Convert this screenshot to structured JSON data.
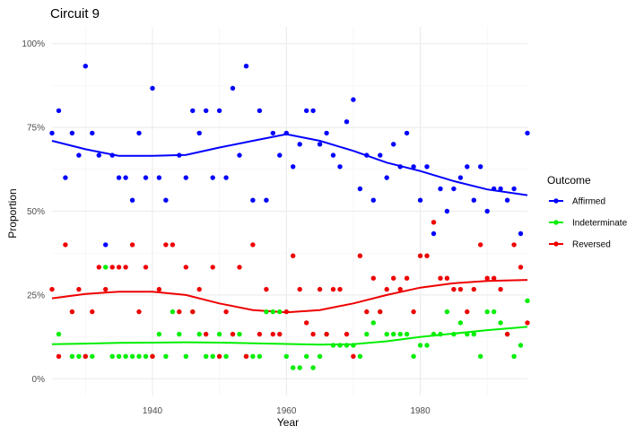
{
  "chart_data": {
    "type": "scatter",
    "title": "Circuit 9",
    "xlabel": "Year",
    "ylabel": "Proportion",
    "xlim": [
      1925,
      1996
    ],
    "ylim": [
      0,
      1
    ],
    "x_ticks": [
      1940,
      1960,
      1980
    ],
    "x_tick_labels": [
      "1940",
      "1960",
      "1980"
    ],
    "y_ticks": [
      0,
      0.25,
      0.5,
      0.75,
      1.0
    ],
    "y_tick_labels": [
      "0%",
      "25%",
      "50%",
      "75%",
      "100%"
    ],
    "grid": true,
    "legend": {
      "title": "Outcome",
      "position": "right"
    },
    "series": [
      {
        "name": "Affirmed",
        "color": "#0000ff",
        "x": [
          1925,
          1926,
          1927,
          1928,
          1929,
          1930,
          1931,
          1932,
          1933,
          1934,
          1935,
          1936,
          1937,
          1938,
          1939,
          1940,
          1941,
          1942,
          1944,
          1945,
          1946,
          1947,
          1948,
          1949,
          1950,
          1951,
          1952,
          1953,
          1954,
          1955,
          1956,
          1957,
          1958,
          1959,
          1960,
          1961,
          1962,
          1963,
          1964,
          1965,
          1966,
          1967,
          1968,
          1969,
          1970,
          1971,
          1972,
          1973,
          1974,
          1975,
          1976,
          1977,
          1978,
          1979,
          1980,
          1981,
          1982,
          1983,
          1984,
          1985,
          1986,
          1987,
          1988,
          1989,
          1990,
          1991,
          1992,
          1993,
          1994,
          1995,
          1996
        ],
        "y": [
          0.733,
          0.8,
          0.6,
          0.733,
          0.667,
          0.933,
          0.733,
          0.667,
          0.4,
          0.667,
          0.6,
          0.6,
          0.533,
          0.733,
          0.6,
          0.867,
          0.6,
          0.533,
          0.667,
          0.6,
          0.8,
          0.733,
          0.8,
          0.6,
          0.8,
          0.6,
          0.867,
          0.667,
          0.933,
          0.533,
          0.8,
          0.533,
          0.733,
          0.667,
          0.733,
          0.633,
          0.7,
          0.8,
          0.8,
          0.7,
          0.733,
          0.667,
          0.633,
          0.767,
          0.833,
          0.567,
          0.667,
          0.533,
          0.667,
          0.6,
          0.7,
          0.633,
          0.733,
          0.633,
          0.533,
          0.633,
          0.433,
          0.567,
          0.5,
          0.567,
          0.6,
          0.633,
          0.533,
          0.633,
          0.5,
          0.567,
          0.567,
          0.533,
          0.567,
          0.433,
          0.733
        ],
        "trend": {
          "x": [
            1925,
            1930,
            1935,
            1940,
            1945,
            1950,
            1955,
            1960,
            1965,
            1970,
            1975,
            1980,
            1985,
            1990,
            1996
          ],
          "y": [
            0.71,
            0.685,
            0.665,
            0.665,
            0.668,
            0.69,
            0.71,
            0.73,
            0.71,
            0.68,
            0.645,
            0.62,
            0.59,
            0.565,
            0.548
          ]
        }
      },
      {
        "name": "Indeterminate",
        "color": "#00ee00",
        "x": [
          1926,
          1928,
          1929,
          1930,
          1931,
          1933,
          1934,
          1935,
          1936,
          1937,
          1938,
          1939,
          1940,
          1941,
          1942,
          1943,
          1944,
          1945,
          1946,
          1947,
          1948,
          1949,
          1950,
          1951,
          1952,
          1953,
          1954,
          1955,
          1956,
          1957,
          1958,
          1959,
          1960,
          1961,
          1962,
          1963,
          1964,
          1965,
          1966,
          1967,
          1968,
          1969,
          1970,
          1971,
          1972,
          1973,
          1974,
          1975,
          1976,
          1977,
          1978,
          1979,
          1980,
          1981,
          1982,
          1983,
          1984,
          1985,
          1986,
          1987,
          1988,
          1989,
          1990,
          1991,
          1992,
          1993,
          1994,
          1995,
          1996
        ],
        "y": [
          0.133,
          0.067,
          0.067,
          0.067,
          0.067,
          0.333,
          0.067,
          0.067,
          0.067,
          0.067,
          0.067,
          0.067,
          0.067,
          0.133,
          0.067,
          0.2,
          0.133,
          0.067,
          0.2,
          0.133,
          0.067,
          0.067,
          0.133,
          0.067,
          0.133,
          0.133,
          0.067,
          0.067,
          0.067,
          0.2,
          0.2,
          0.2,
          0.067,
          0.033,
          0.033,
          0.067,
          0.033,
          0.067,
          0.133,
          0.1,
          0.1,
          0.1,
          0.1,
          0.067,
          0.133,
          0.167,
          0.2,
          0.133,
          0.133,
          0.133,
          0.133,
          0.067,
          0.1,
          0.1,
          0.133,
          0.133,
          0.2,
          0.133,
          0.167,
          0.133,
          0.133,
          0.067,
          0.2,
          0.2,
          0.167,
          0.133,
          0.067,
          0.1,
          0.233
        ],
        "trend": {
          "x": [
            1925,
            1930,
            1935,
            1940,
            1945,
            1950,
            1955,
            1960,
            1965,
            1970,
            1975,
            1980,
            1985,
            1990,
            1996
          ],
          "y": [
            0.103,
            0.105,
            0.107,
            0.108,
            0.109,
            0.108,
            0.106,
            0.104,
            0.102,
            0.103,
            0.112,
            0.125,
            0.135,
            0.145,
            0.155
          ]
        }
      },
      {
        "name": "Reversed",
        "color": "#ee0000",
        "x": [
          1925,
          1926,
          1927,
          1928,
          1929,
          1930,
          1931,
          1932,
          1933,
          1934,
          1935,
          1936,
          1937,
          1938,
          1939,
          1940,
          1941,
          1942,
          1943,
          1944,
          1945,
          1946,
          1947,
          1948,
          1949,
          1950,
          1951,
          1952,
          1953,
          1954,
          1955,
          1956,
          1957,
          1958,
          1959,
          1960,
          1961,
          1962,
          1963,
          1964,
          1965,
          1966,
          1967,
          1968,
          1969,
          1970,
          1971,
          1972,
          1973,
          1974,
          1975,
          1976,
          1977,
          1978,
          1979,
          1980,
          1981,
          1982,
          1983,
          1984,
          1985,
          1986,
          1987,
          1988,
          1989,
          1990,
          1991,
          1992,
          1993,
          1994,
          1995,
          1996
        ],
        "y": [
          0.267,
          0.067,
          0.4,
          0.2,
          0.267,
          0.067,
          0.2,
          0.333,
          0.267,
          0.333,
          0.333,
          0.333,
          0.4,
          0.2,
          0.333,
          0.067,
          0.267,
          0.4,
          0.4,
          0.2,
          0.333,
          0.2,
          0.267,
          0.133,
          0.333,
          0.067,
          0.2,
          0.133,
          0.333,
          0.067,
          0.4,
          0.133,
          0.267,
          0.133,
          0.133,
          0.2,
          0.367,
          0.267,
          0.167,
          0.133,
          0.267,
          0.133,
          0.267,
          0.267,
          0.133,
          0.067,
          0.367,
          0.2,
          0.3,
          0.2,
          0.267,
          0.3,
          0.267,
          0.3,
          0.2,
          0.367,
          0.367,
          0.467,
          0.3,
          0.3,
          0.267,
          0.267,
          0.2,
          0.267,
          0.4,
          0.3,
          0.3,
          0.267,
          0.133,
          0.4,
          0.333,
          0.167
        ],
        "trend": {
          "x": [
            1925,
            1930,
            1935,
            1940,
            1945,
            1950,
            1955,
            1960,
            1965,
            1970,
            1975,
            1980,
            1985,
            1990,
            1996
          ],
          "y": [
            0.24,
            0.253,
            0.26,
            0.26,
            0.25,
            0.225,
            0.205,
            0.198,
            0.205,
            0.225,
            0.25,
            0.272,
            0.285,
            0.292,
            0.295
          ]
        }
      }
    ]
  }
}
